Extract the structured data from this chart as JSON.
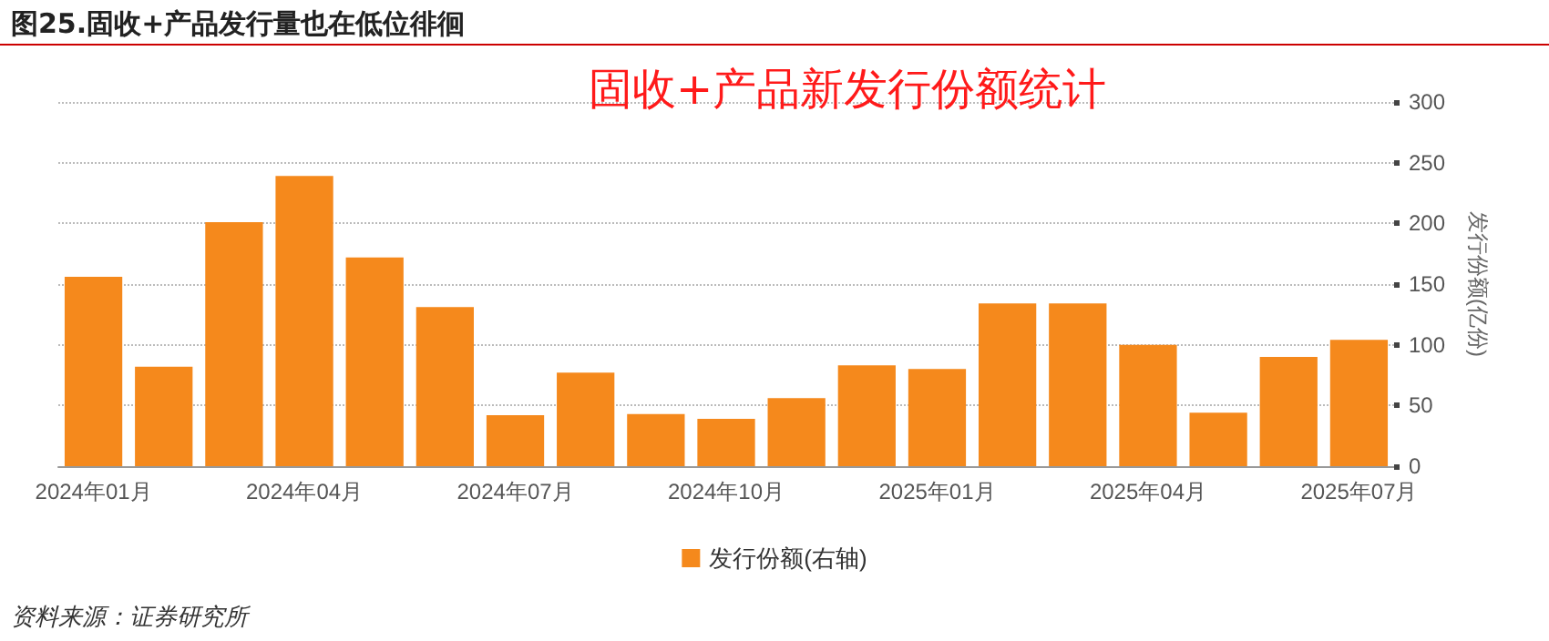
{
  "chart_data": {
    "type": "bar",
    "title": "图25.固收+产品发行量也在低位徘徊",
    "ylabel": "发行份额(亿份)",
    "annotations": [
      "固收+产品新发行份额统计",
      "资料来源：证券研究所"
    ],
    "categories": [
      "2024年01月",
      null,
      null,
      "2024年04月",
      null,
      null,
      "2024年07月",
      null,
      null,
      "2024年10月",
      null,
      null,
      "2025年01月",
      null,
      null,
      "2025年04月",
      null,
      null,
      "2025年07月"
    ],
    "series": [
      {
        "name": "发行份额(右轴)",
        "color": "#f5891c",
        "values": [
          156,
          82,
          201,
          239,
          172,
          131,
          42,
          77,
          43,
          39,
          56,
          83,
          80,
          134,
          134,
          100,
          44,
          90,
          104
        ]
      }
    ],
    "ylim": [
      0,
      300
    ],
    "yticks": [
      0,
      50,
      100,
      150,
      200,
      250,
      300
    ],
    "grid": "y",
    "legend": "bottom"
  }
}
